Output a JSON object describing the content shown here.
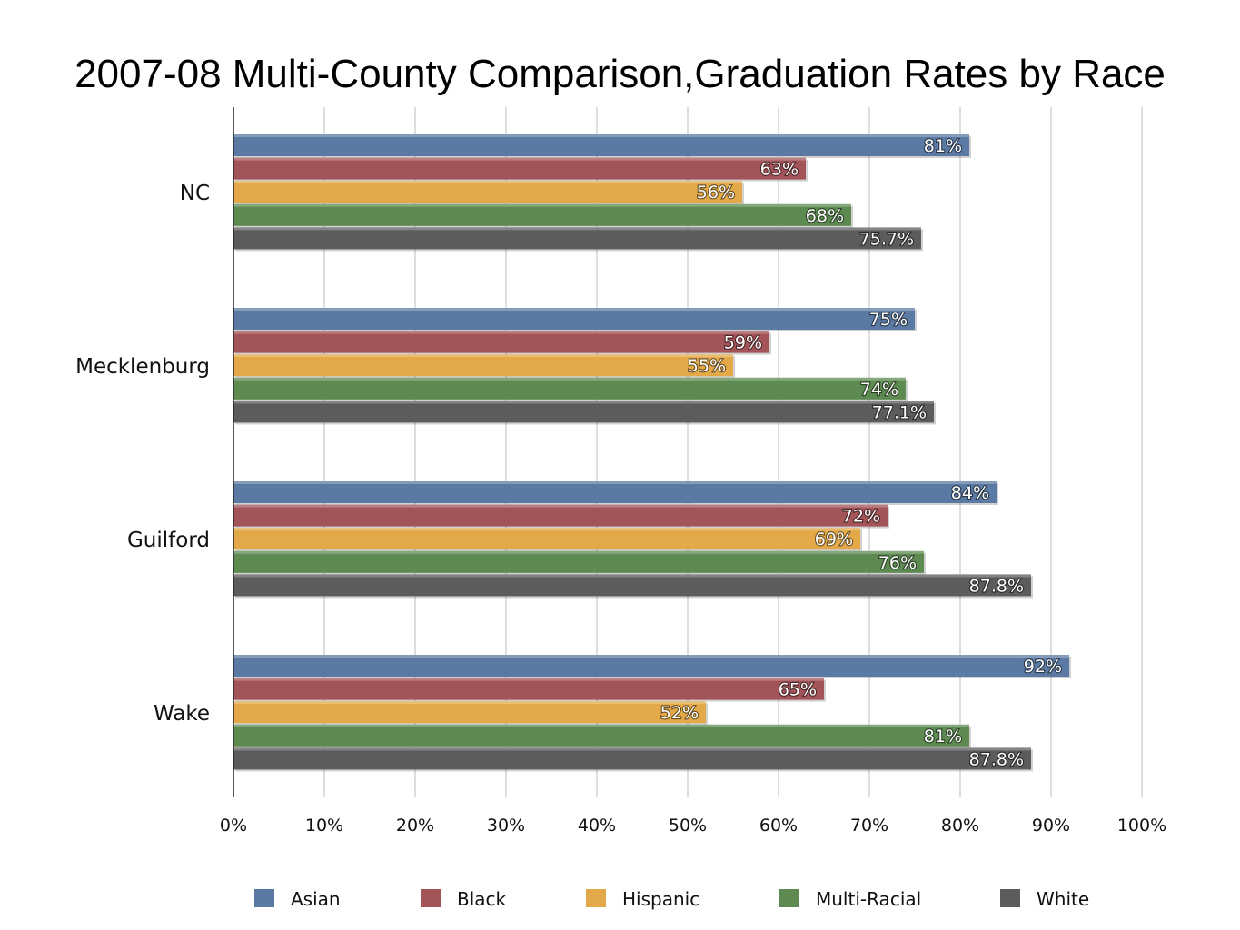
{
  "chart_data": {
    "type": "bar",
    "orientation": "horizontal",
    "title": "2007-08 Multi-County Comparison,Graduation Rates by Race",
    "xlabel": "",
    "ylabel": "",
    "xlim": [
      0,
      100
    ],
    "x_ticks": [
      "0%",
      "10%",
      "20%",
      "30%",
      "40%",
      "50%",
      "60%",
      "70%",
      "80%",
      "90%",
      "100%"
    ],
    "grid": true,
    "legend_position": "bottom",
    "categories": [
      "NC",
      "Mecklenburg",
      "Guilford",
      "Wake"
    ],
    "series": [
      {
        "name": "Asian",
        "color": "#5b7aa3",
        "values": [
          81,
          75,
          84,
          92
        ],
        "labels": [
          "81%",
          "75%",
          "84%",
          "92%"
        ]
      },
      {
        "name": "Black",
        "color": "#a35458",
        "values": [
          63,
          59,
          72,
          65
        ],
        "labels": [
          "63%",
          "59%",
          "72%",
          "65%"
        ]
      },
      {
        "name": "Hispanic",
        "color": "#e3a948",
        "values": [
          56,
          55,
          69,
          52
        ],
        "labels": [
          "56%",
          "55%",
          "69%",
          "52%"
        ]
      },
      {
        "name": "Multi-Racial",
        "color": "#5d8a51",
        "values": [
          68,
          74,
          76,
          81
        ],
        "labels": [
          "68%",
          "74%",
          "76%",
          "81%"
        ]
      },
      {
        "name": "White",
        "color": "#5c5c5c",
        "values": [
          75.7,
          77.1,
          87.8,
          87.8
        ],
        "labels": [
          "75.7%",
          "77.1%",
          "87.8%",
          "87.8%"
        ]
      }
    ]
  }
}
